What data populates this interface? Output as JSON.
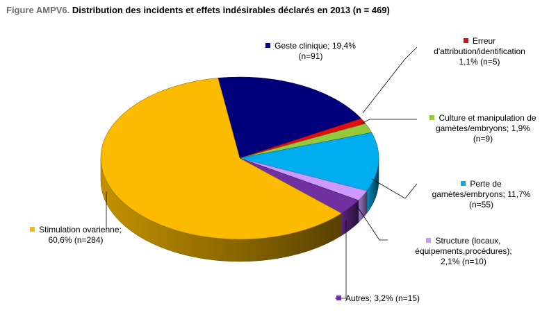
{
  "figure": {
    "label": "Figure AMPV6.",
    "caption": "Distribution des incidents et effets indésirables déclarés en 2013 (n = 469)"
  },
  "chart_data": {
    "type": "pie",
    "title": "Distribution des incidents et effets indésirables déclarés en 2013 (n = 469)",
    "total": 469,
    "slices": [
      {
        "name": "Geste clinique",
        "percent": 19.4,
        "n": 91,
        "color": "#00007a",
        "label": "Geste clinique; 19,4%\n(n=91)"
      },
      {
        "name": "Erreur d'attribution/identification",
        "percent": 1.1,
        "n": 5,
        "color": "#e30d10",
        "label": "Erreur\nd'attribution/identification\n1,1% (n=5)"
      },
      {
        "name": "Culture et manipulation de gamètes/embryons",
        "percent": 1.9,
        "n": 9,
        "color": "#94c83d",
        "label": "Culture et manipulation de\ngamètes/embryons;  1,9%\n(n=9)"
      },
      {
        "name": "Perte de gamètes/embryons",
        "percent": 11.7,
        "n": 55,
        "color": "#00aeef",
        "label": "Perte de\ngamètes/embryons;  11,7%\n(n=55)"
      },
      {
        "name": "Structure (locaux, équipements,procédures)",
        "percent": 2.1,
        "n": 10,
        "color": "#cc99ff",
        "label": "Structure (locaux,\néquipements,procédures);\n2,1% (n=10)"
      },
      {
        "name": "Autres",
        "percent": 3.2,
        "n": 15,
        "color": "#7030a0",
        "label": "Autres;  3,2% (n=15)"
      },
      {
        "name": "Stimulation ovarienne",
        "percent": 60.6,
        "n": 284,
        "color": "#fbbb00",
        "label": "Stimulation ovarienne;\n60,6% (n=284)"
      }
    ]
  }
}
